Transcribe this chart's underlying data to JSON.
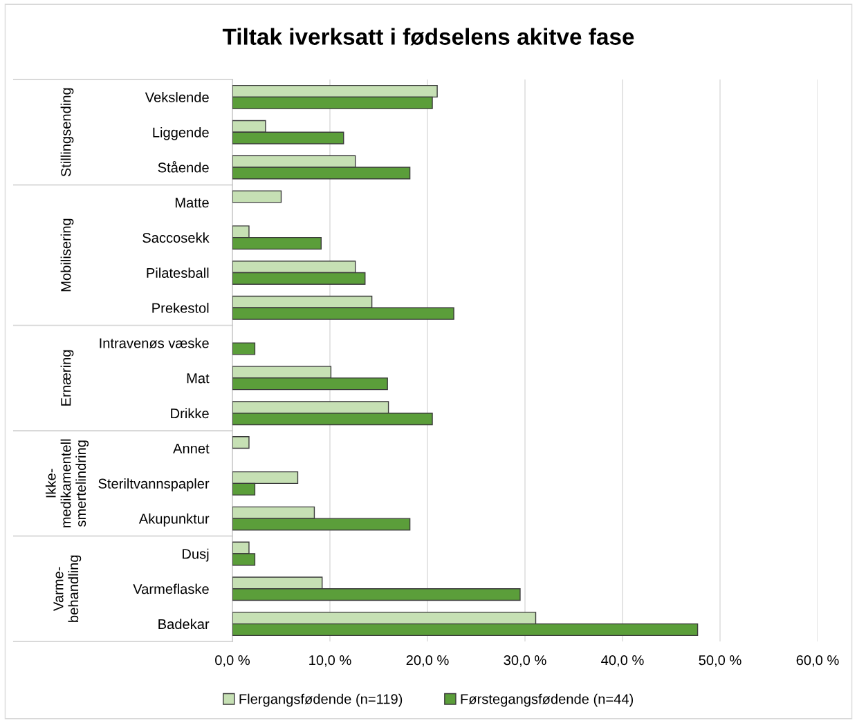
{
  "chart_data": {
    "type": "bar",
    "orientation": "horizontal",
    "title": "Tiltak iverksatt i fødselens akitve fase",
    "categories": [
      "Vekslende",
      "Liggende",
      "Stående",
      "Matte",
      "Saccosekk",
      "Pilatesball",
      "Prekestol",
      "Intravenøs væske",
      "Mat",
      "Drikke",
      "Annet",
      "Steriltvannspapler",
      "Akupunktur",
      "Dusj",
      "Varmeflaske",
      "Badekar"
    ],
    "series": [
      {
        "name": "Flergangsfødende (n=119)",
        "color": "#c6e0b4",
        "values": [
          21.0,
          3.4,
          12.6,
          5.0,
          1.7,
          12.6,
          14.3,
          null,
          10.1,
          16.0,
          1.7,
          6.7,
          8.4,
          1.7,
          9.2,
          31.1
        ]
      },
      {
        "name": "Førstegangsfødende (n=44)",
        "color": "#5b9e3a",
        "values": [
          20.5,
          11.4,
          18.2,
          null,
          9.1,
          13.6,
          22.7,
          2.3,
          15.9,
          20.5,
          null,
          2.3,
          18.2,
          2.3,
          29.5,
          47.7
        ]
      }
    ],
    "xlim": [
      0,
      60
    ],
    "xticks": [
      {
        "value": 0,
        "label": "0,0 %"
      },
      {
        "value": 10,
        "label": "10,0 %"
      },
      {
        "value": 20,
        "label": "20,0 %"
      },
      {
        "value": 30,
        "label": "30,0 %"
      },
      {
        "value": 40,
        "label": "40,0 %"
      },
      {
        "value": 50,
        "label": "50,0 %"
      },
      {
        "value": 60,
        "label": "60,0 %"
      }
    ],
    "grid": "x",
    "legend": "bottom",
    "annotations": [
      "Stillingsending",
      "Mobilisering",
      "Ernæring",
      "Ikke-\nmedikamentell\nsmertelindring",
      "Varme-\nbehandling"
    ]
  }
}
